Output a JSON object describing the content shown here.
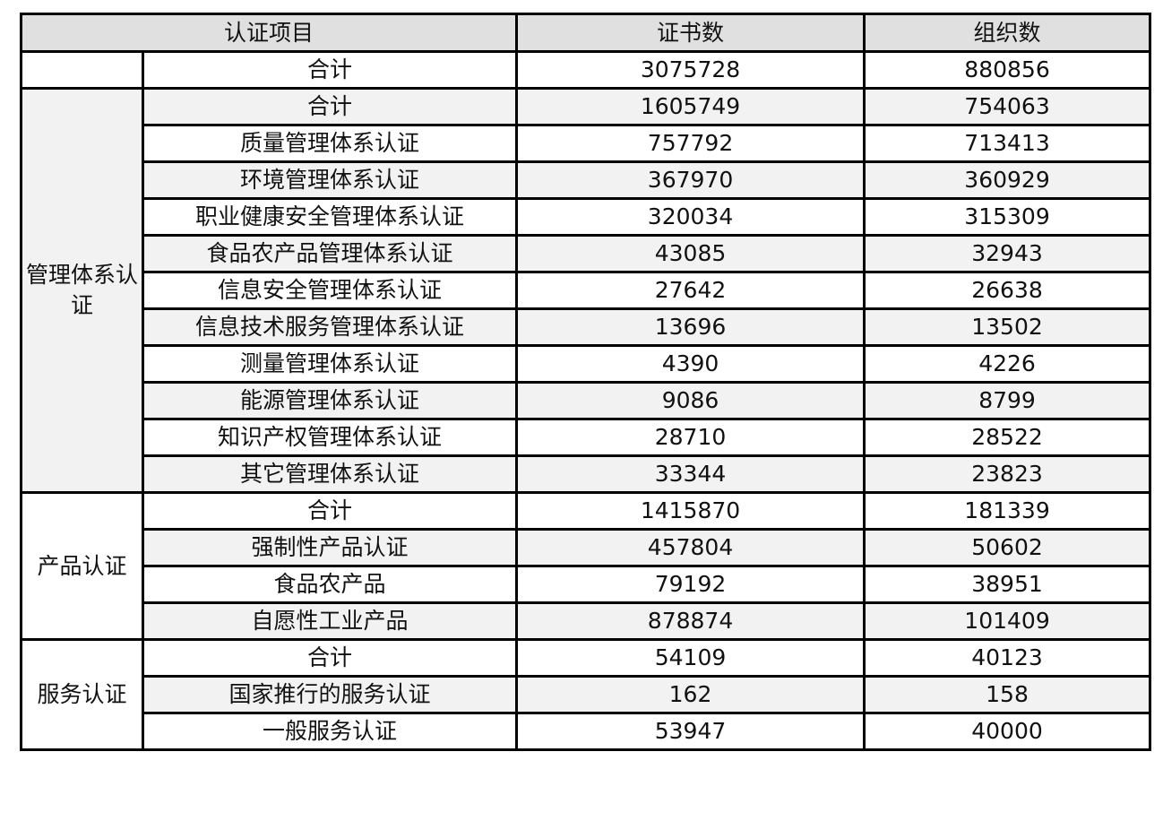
{
  "header": {
    "item": "认证项目",
    "certificates": "证书数",
    "organizations": "组织数"
  },
  "total": {
    "label": "合计",
    "certificates": "3075728",
    "organizations": "880856"
  },
  "groups": [
    {
      "name": "管理体系认证",
      "shaded": true,
      "rows": [
        {
          "label": "合计",
          "certificates": "1605749",
          "organizations": "754063"
        },
        {
          "label": "质量管理体系认证",
          "certificates": "757792",
          "organizations": "713413"
        },
        {
          "label": "环境管理体系认证",
          "certificates": "367970",
          "organizations": "360929"
        },
        {
          "label": "职业健康安全管理体系认证",
          "certificates": "320034",
          "organizations": "315309"
        },
        {
          "label": "食品农产品管理体系认证",
          "certificates": "43085",
          "organizations": "32943"
        },
        {
          "label": "信息安全管理体系认证",
          "certificates": "27642",
          "organizations": "26638"
        },
        {
          "label": "信息技术服务管理体系认证",
          "certificates": "13696",
          "organizations": "13502"
        },
        {
          "label": "测量管理体系认证",
          "certificates": "4390",
          "organizations": "4226"
        },
        {
          "label": "能源管理体系认证",
          "certificates": "9086",
          "organizations": "8799"
        },
        {
          "label": "知识产权管理体系认证",
          "certificates": "28710",
          "organizations": "28522"
        },
        {
          "label": "其它管理体系认证",
          "certificates": "33344",
          "organizations": "23823"
        }
      ]
    },
    {
      "name": "产品认证",
      "shaded": false,
      "rows": [
        {
          "label": "合计",
          "certificates": "1415870",
          "organizations": "181339"
        },
        {
          "label": "强制性产品认证",
          "certificates": "457804",
          "organizations": "50602"
        },
        {
          "label": "食品农产品",
          "certificates": "79192",
          "organizations": "38951"
        },
        {
          "label": "自愿性工业产品",
          "certificates": "878874",
          "organizations": "101409"
        }
      ]
    },
    {
      "name": "服务认证",
      "shaded": false,
      "rows": [
        {
          "label": "合计",
          "certificates": "54109",
          "organizations": "40123"
        },
        {
          "label": "国家推行的服务认证",
          "certificates": "162",
          "organizations": "158"
        },
        {
          "label": "一般服务认证",
          "certificates": "53947",
          "organizations": "40000"
        }
      ]
    }
  ]
}
